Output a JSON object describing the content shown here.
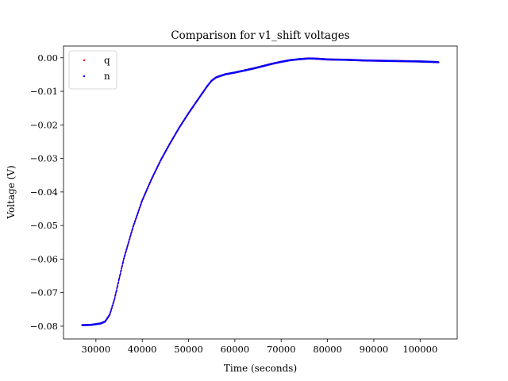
{
  "chart_data": {
    "type": "scatter",
    "title": "Comparison for v1_shift voltages",
    "xlabel": "Time (seconds)",
    "ylabel": "Voltage (V)",
    "xlim": [
      23000,
      108000
    ],
    "ylim": [
      -0.0838,
      0.0035
    ],
    "xticks": [
      30000,
      40000,
      50000,
      60000,
      70000,
      80000,
      90000,
      100000
    ],
    "xtick_labels": [
      "30000",
      "40000",
      "50000",
      "60000",
      "70000",
      "80000",
      "90000",
      "100000"
    ],
    "yticks": [
      0.0,
      -0.01,
      -0.02,
      -0.03,
      -0.04,
      -0.05,
      -0.06,
      -0.07,
      -0.08
    ],
    "ytick_labels": [
      "0.00",
      "−0.01",
      "−0.02",
      "−0.03",
      "−0.04",
      "−0.05",
      "−0.06",
      "−0.07",
      "−0.08"
    ],
    "grid": false,
    "legend_position": "top-left",
    "series": [
      {
        "name": "q",
        "color": "#ff0000",
        "x": [
          27000,
          29000,
          31000,
          32000,
          33000,
          34000,
          35000,
          36000,
          38000,
          40000,
          42000,
          44000,
          46000,
          48000,
          50000,
          52000,
          54000,
          55000,
          56000,
          58000,
          60000,
          62000,
          64000,
          66000,
          68000,
          70000,
          72000,
          74000,
          76000,
          78000,
          80000,
          84000,
          88000,
          92000,
          96000,
          100000,
          104000
        ],
        "y": [
          -0.0797,
          -0.0796,
          -0.0792,
          -0.0786,
          -0.0765,
          -0.072,
          -0.066,
          -0.06,
          -0.0505,
          -0.0425,
          -0.0362,
          -0.0305,
          -0.0255,
          -0.0208,
          -0.0165,
          -0.0125,
          -0.0085,
          -0.0068,
          -0.0058,
          -0.0049,
          -0.0044,
          -0.0038,
          -0.0032,
          -0.0025,
          -0.0018,
          -0.0012,
          -0.0007,
          -0.0004,
          -0.0002,
          -0.0003,
          -0.0005,
          -0.0006,
          -0.0008,
          -0.0009,
          -0.001,
          -0.0011,
          -0.0013
        ]
      },
      {
        "name": "n",
        "color": "#0000ff",
        "x": [
          27000,
          29000,
          31000,
          32000,
          33000,
          34000,
          35000,
          36000,
          38000,
          40000,
          42000,
          44000,
          46000,
          48000,
          50000,
          52000,
          54000,
          55000,
          56000,
          58000,
          60000,
          62000,
          64000,
          66000,
          68000,
          70000,
          72000,
          74000,
          76000,
          78000,
          80000,
          84000,
          88000,
          92000,
          96000,
          100000,
          104000
        ],
        "y": [
          -0.0797,
          -0.0796,
          -0.0792,
          -0.0786,
          -0.0765,
          -0.072,
          -0.066,
          -0.06,
          -0.0505,
          -0.0425,
          -0.0362,
          -0.0305,
          -0.0255,
          -0.0208,
          -0.0165,
          -0.0125,
          -0.0085,
          -0.0068,
          -0.0058,
          -0.0049,
          -0.0044,
          -0.0038,
          -0.0032,
          -0.0025,
          -0.0018,
          -0.0012,
          -0.0007,
          -0.0004,
          -0.0002,
          -0.0003,
          -0.0005,
          -0.0006,
          -0.0008,
          -0.0009,
          -0.001,
          -0.0011,
          -0.0013
        ]
      }
    ]
  }
}
